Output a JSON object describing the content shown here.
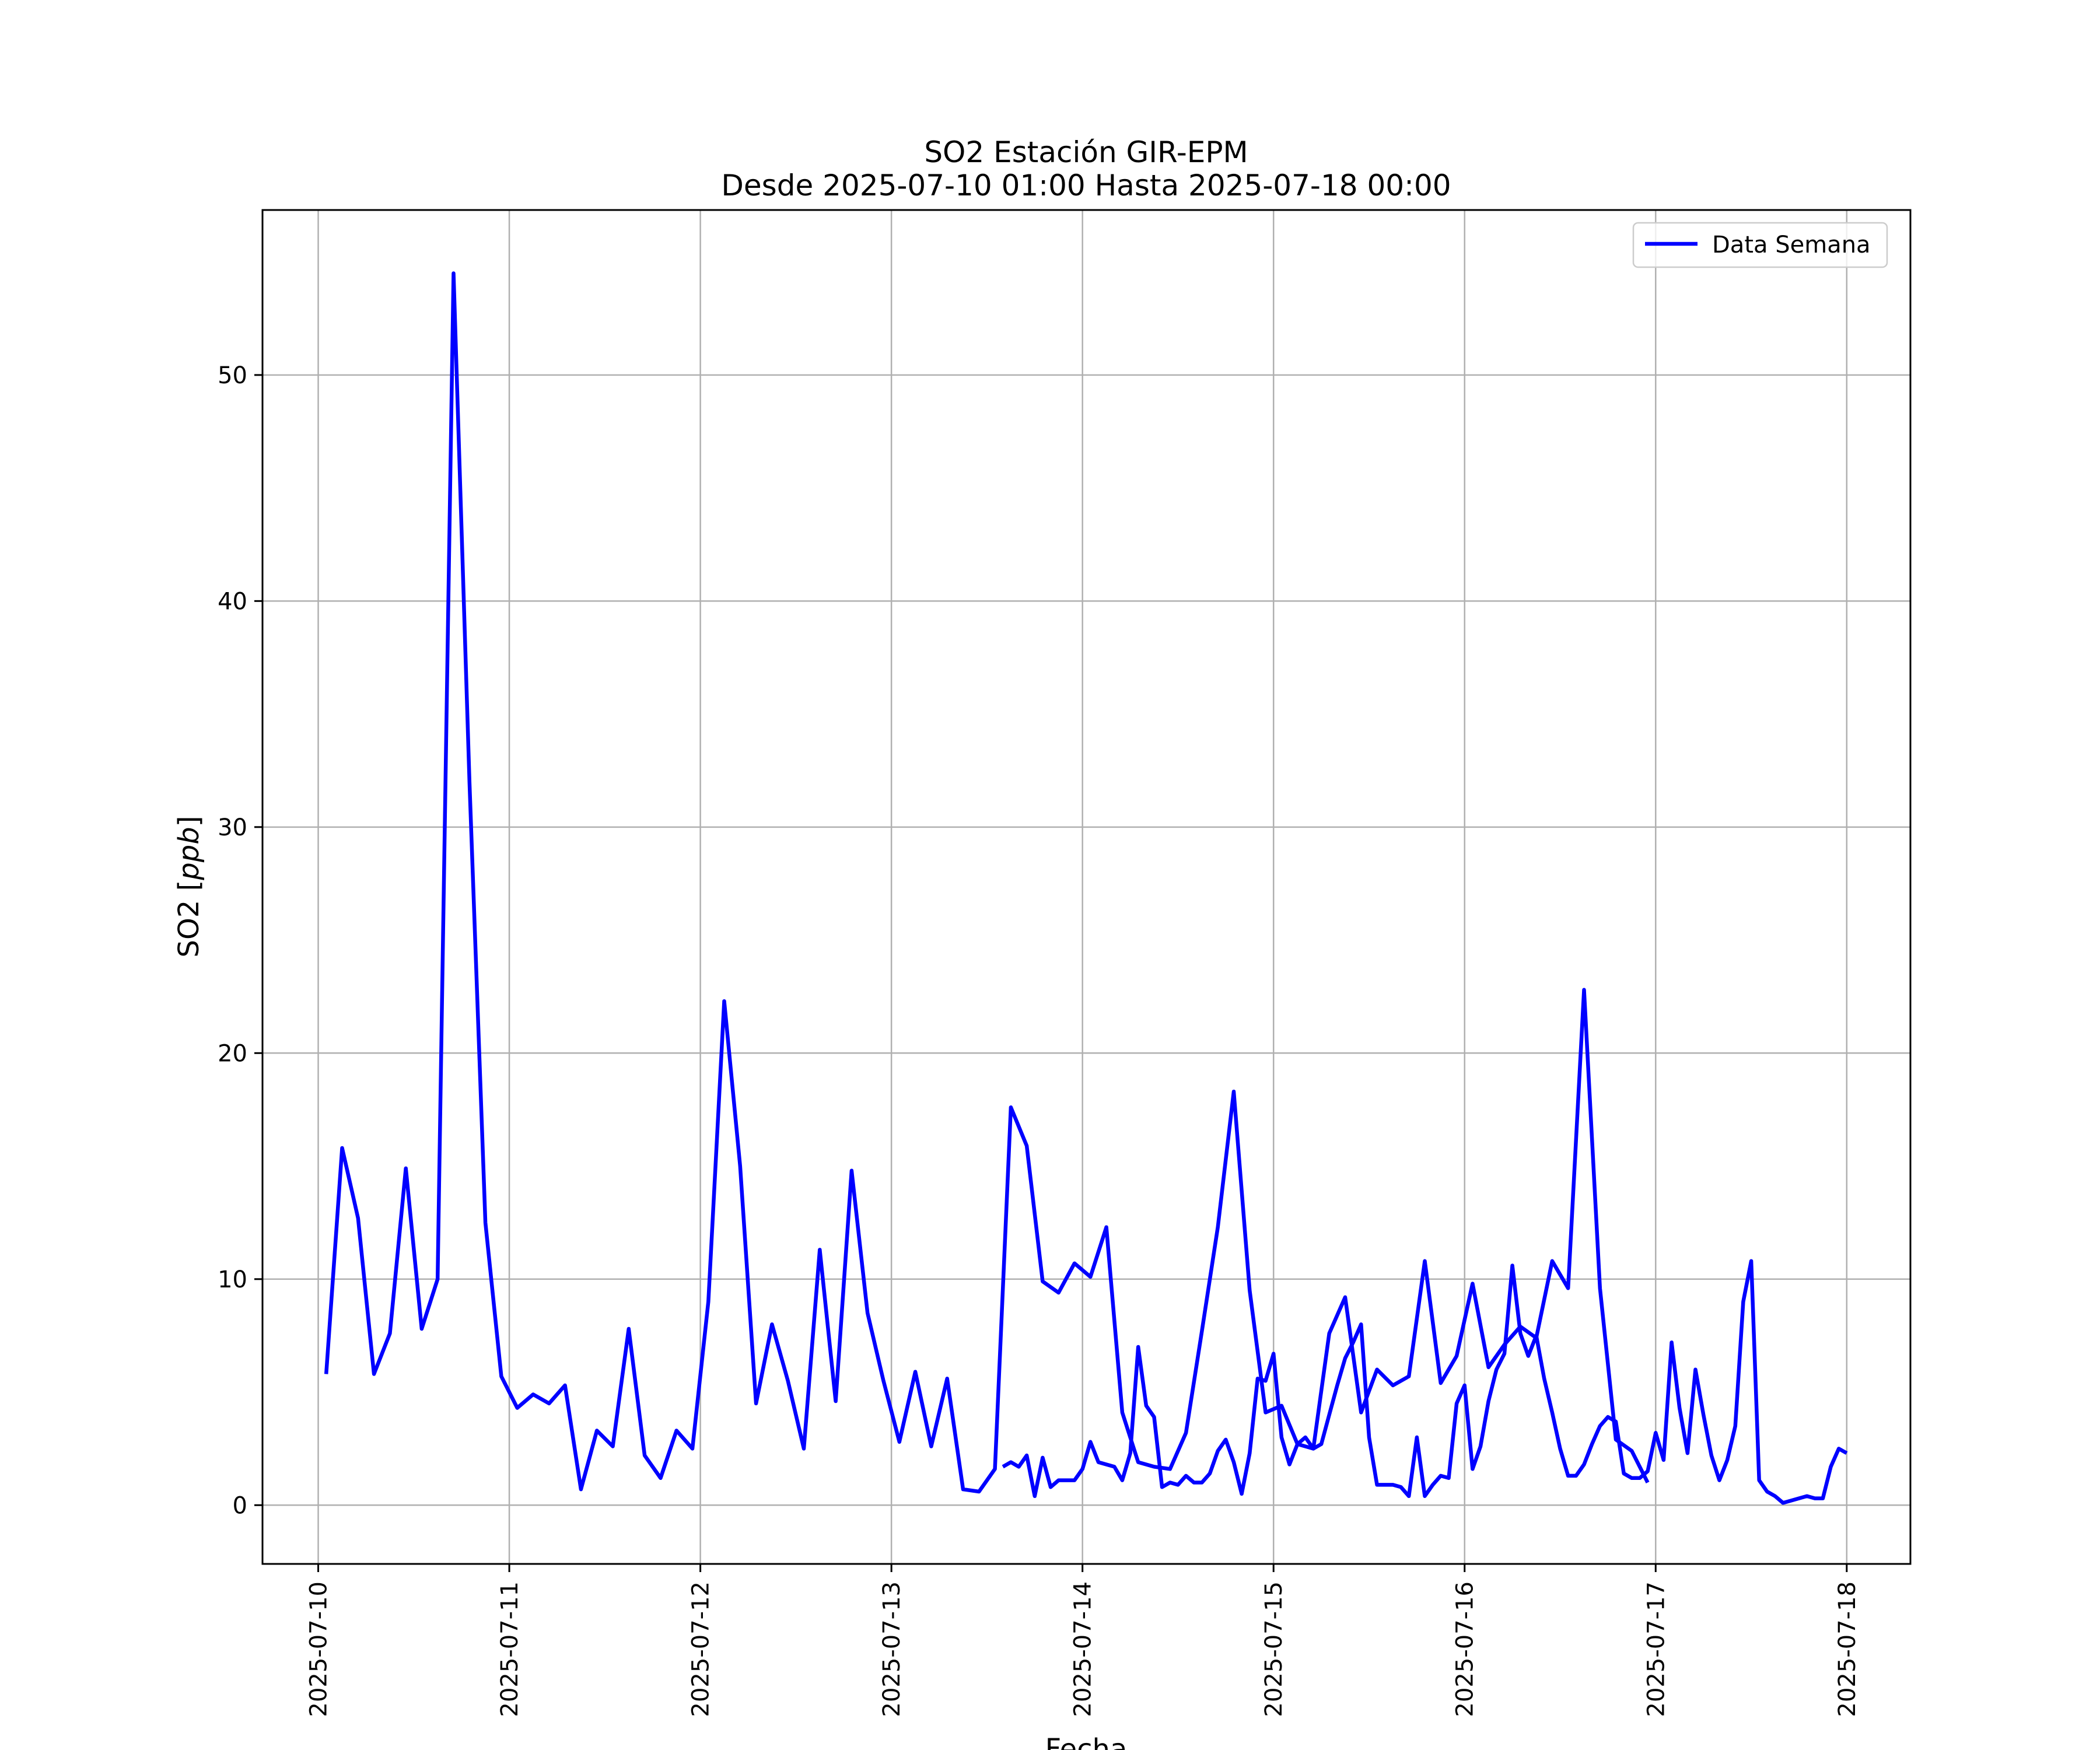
{
  "chart_data": {
    "type": "line",
    "title": "SO2 Estación GIR-EPM",
    "subtitle": "Desde 2025-07-10 01:00 Hasta 2025-07-18 00:00",
    "xlabel": "Fecha",
    "ylabel": "SO2 [ppb]",
    "ylabel_main": "SO2 ",
    "ylabel_unit": "ppb",
    "xlim": [
      "2025-07-09 17:00",
      "2025-07-18 08:00"
    ],
    "ylim": [
      -2.6,
      57.3
    ],
    "xticks": [
      "2025-07-10",
      "2025-07-11",
      "2025-07-12",
      "2025-07-13",
      "2025-07-14",
      "2025-07-15",
      "2025-07-16",
      "2025-07-17",
      "2025-07-18"
    ],
    "yticks": [
      0,
      10,
      20,
      30,
      40,
      50
    ],
    "grid": true,
    "legend_position": "upper right",
    "series": [
      {
        "name": "Data Semana",
        "color": "#0000ff",
        "segments": [
          {
            "start": "2025-07-10 01:00",
            "interval_hours": 2,
            "values": [
              5.8,
              15.8,
              12.7,
              5.8,
              7.6,
              14.9,
              7.8,
              10.0,
              54.5,
              32.0,
              12.5,
              5.7,
              4.3,
              4.9,
              4.5,
              5.3,
              0.7,
              3.3,
              2.6,
              7.8,
              2.2,
              1.2,
              3.3,
              2.5,
              9.0,
              22.3,
              15.0,
              4.5,
              8.0,
              5.5,
              2.5,
              11.3,
              4.6,
              14.8,
              8.5,
              5.5,
              2.8,
              5.9,
              2.6,
              5.6,
              0.7,
              0.6,
              1.6,
              17.6,
              15.9,
              9.9,
              9.4,
              10.7,
              10.1,
              12.3,
              4.1,
              1.9,
              1.7,
              1.6,
              3.2,
              7.7,
              12.3,
              18.3,
              9.5,
              4.1,
              4.4,
              2.7,
              2.5,
              7.6,
              9.2,
              4.1,
              6.0,
              5.3,
              5.7,
              10.8,
              5.4,
              6.6,
              9.8,
              6.1,
              7.1,
              7.9,
              7.4,
              10.8,
              9.6,
              22.8,
              9.6,
              2.9,
              2.4,
              1.0
            ]
          },
          {
            "start": "2025-07-13 14:00",
            "interval_hours": 1,
            "values": [
              1.7,
              1.9,
              1.7,
              2.2,
              0.4,
              2.1,
              0.8,
              1.1,
              1.1,
              1.1,
              1.6,
              2.8,
              1.9,
              1.8,
              1.7,
              1.1,
              2.3,
              7.0,
              4.4,
              3.9,
              0.8,
              1.0,
              0.9,
              1.3,
              1.0,
              1.0,
              1.4,
              2.4,
              2.9,
              1.9,
              0.5,
              2.3,
              5.6,
              5.5,
              6.7,
              3.0,
              1.8,
              2.7,
              3.0,
              2.5,
              2.7,
              4.0,
              5.3,
              6.5,
              7.2,
              8.0,
              3.0,
              0.9,
              0.9,
              0.9,
              0.8,
              0.4,
              3.0,
              0.4,
              0.9,
              1.3,
              1.2,
              4.5,
              5.3,
              1.6,
              2.6,
              4.6,
              6.0,
              6.7,
              10.6,
              7.6,
              6.6,
              7.5,
              5.6,
              4.1,
              2.5,
              1.3,
              1.3,
              1.8,
              2.7,
              3.5,
              3.9,
              3.7,
              1.4,
              1.2,
              1.2,
              1.5,
              3.2,
              2.0,
              7.2,
              4.3,
              2.3,
              6.0,
              4.0,
              2.2,
              1.1,
              2.0,
              3.5,
              9.0,
              10.8,
              1.1,
              0.6,
              0.4,
              0.1,
              0.2,
              0.3,
              0.4,
              0.3,
              0.3,
              1.7,
              2.5,
              2.3
            ]
          }
        ]
      }
    ]
  }
}
